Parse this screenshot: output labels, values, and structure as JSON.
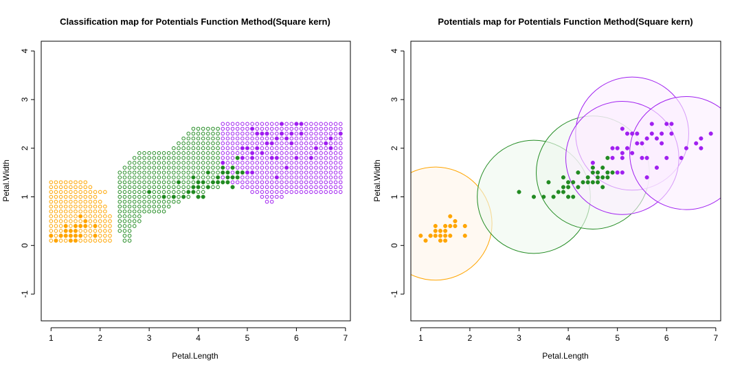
{
  "colors": {
    "setosa": "#ffa500",
    "versicolor": "#228b22",
    "virginica": "#a020f0",
    "frame": "#000000"
  },
  "chart_data": [
    {
      "type": "scatter",
      "title": "Classification map for Potentials Function Method(Square kern)",
      "xlabel": "Petal.Length",
      "ylabel": "Petal.Width",
      "xlim": [
        0.8,
        7.1
      ],
      "ylim": [
        -1.55,
        4.2
      ],
      "xticks": [
        1,
        2,
        3,
        4,
        5,
        6,
        7
      ],
      "yticks": [
        -1,
        0,
        1,
        2,
        3,
        4
      ],
      "grid": false,
      "grid_step": 0.1,
      "class_regions": [
        {
          "class": "setosa",
          "color": "#ffa500",
          "rows": [
            {
              "y": 0.1,
              "x_from": 1.0,
              "x_to": 2.2
            },
            {
              "y": 0.2,
              "x_from": 1.0,
              "x_to": 2.2
            },
            {
              "y": 0.3,
              "x_from": 1.0,
              "x_to": 2.2
            },
            {
              "y": 0.4,
              "x_from": 1.0,
              "x_to": 2.2
            },
            {
              "y": 0.5,
              "x_from": 1.0,
              "x_to": 2.2
            },
            {
              "y": 0.6,
              "x_from": 1.0,
              "x_to": 2.2
            },
            {
              "y": 0.7,
              "x_from": 1.0,
              "x_to": 2.1
            },
            {
              "y": 0.8,
              "x_from": 1.0,
              "x_to": 2.1
            },
            {
              "y": 0.9,
              "x_from": 1.0,
              "x_to": 2.0
            },
            {
              "y": 1.0,
              "x_from": 1.0,
              "x_to": 1.9
            },
            {
              "y": 1.1,
              "x_from": 1.0,
              "x_to": 2.1
            },
            {
              "y": 1.2,
              "x_from": 1.0,
              "x_to": 1.8
            },
            {
              "y": 1.3,
              "x_from": 1.0,
              "x_to": 1.7
            }
          ]
        },
        {
          "class": "versicolor",
          "color": "#228b22",
          "rows": [
            {
              "y": 0.1,
              "x_from": 2.5,
              "x_to": 2.6
            },
            {
              "y": 0.2,
              "x_from": 2.5,
              "x_to": 2.6
            },
            {
              "y": 0.3,
              "x_from": 2.4,
              "x_to": 2.6
            },
            {
              "y": 0.4,
              "x_from": 2.4,
              "x_to": 2.7
            },
            {
              "y": 0.5,
              "x_from": 2.4,
              "x_to": 2.8
            },
            {
              "y": 0.6,
              "x_from": 2.4,
              "x_to": 2.8
            },
            {
              "y": 0.7,
              "x_from": 2.4,
              "x_to": 3.3
            },
            {
              "y": 0.8,
              "x_from": 2.4,
              "x_to": 3.4
            },
            {
              "y": 0.9,
              "x_from": 2.4,
              "x_to": 3.6
            },
            {
              "y": 1.0,
              "x_from": 2.4,
              "x_to": 3.8
            },
            {
              "y": 1.1,
              "x_from": 2.4,
              "x_to": 4.1
            },
            {
              "y": 1.2,
              "x_from": 2.4,
              "x_to": 4.4
            },
            {
              "y": 1.3,
              "x_from": 2.4,
              "x_to": 4.4
            },
            {
              "y": 1.4,
              "x_from": 2.4,
              "x_to": 4.5
            },
            {
              "y": 1.5,
              "x_from": 2.4,
              "x_to": 4.4
            },
            {
              "y": 1.6,
              "x_from": 2.5,
              "x_to": 4.4
            },
            {
              "y": 1.7,
              "x_from": 2.6,
              "x_to": 4.4
            },
            {
              "y": 1.8,
              "x_from": 2.7,
              "x_to": 4.4
            },
            {
              "y": 1.9,
              "x_from": 2.8,
              "x_to": 4.4
            },
            {
              "y": 2.0,
              "x_from": 3.5,
              "x_to": 4.4
            },
            {
              "y": 2.1,
              "x_from": 3.6,
              "x_to": 4.4
            },
            {
              "y": 2.2,
              "x_from": 3.7,
              "x_to": 4.4
            },
            {
              "y": 2.3,
              "x_from": 3.8,
              "x_to": 4.4
            },
            {
              "y": 2.4,
              "x_from": 3.9,
              "x_to": 4.4
            }
          ]
        },
        {
          "class": "virginica",
          "color": "#a020f0",
          "rows": [
            {
              "y": 0.9,
              "x_from": 5.4,
              "x_to": 5.5
            },
            {
              "y": 1.0,
              "x_from": 5.3,
              "x_to": 5.7
            },
            {
              "y": 1.1,
              "x_from": 5.1,
              "x_to": 6.9
            },
            {
              "y": 1.2,
              "x_from": 4.9,
              "x_to": 6.9
            },
            {
              "y": 1.3,
              "x_from": 4.7,
              "x_to": 6.9
            },
            {
              "y": 1.4,
              "x_from": 4.5,
              "x_to": 6.9
            },
            {
              "y": 1.5,
              "x_from": 4.5,
              "x_to": 6.9
            },
            {
              "y": 1.6,
              "x_from": 4.5,
              "x_to": 6.9
            },
            {
              "y": 1.7,
              "x_from": 4.5,
              "x_to": 6.9
            },
            {
              "y": 1.8,
              "x_from": 4.5,
              "x_to": 6.9
            },
            {
              "y": 1.9,
              "x_from": 4.5,
              "x_to": 6.9
            },
            {
              "y": 2.0,
              "x_from": 4.5,
              "x_to": 6.9
            },
            {
              "y": 2.1,
              "x_from": 4.5,
              "x_to": 6.9
            },
            {
              "y": 2.2,
              "x_from": 4.5,
              "x_to": 6.9
            },
            {
              "y": 2.3,
              "x_from": 4.5,
              "x_to": 6.9
            },
            {
              "y": 2.4,
              "x_from": 4.5,
              "x_to": 6.9
            },
            {
              "y": 2.5,
              "x_from": 4.5,
              "x_to": 6.9
            }
          ]
        }
      ],
      "points": [
        {
          "class": "setosa",
          "x": 1.4,
          "y": 0.2
        },
        {
          "class": "setosa",
          "x": 1.3,
          "y": 0.2
        },
        {
          "class": "setosa",
          "x": 1.5,
          "y": 0.2
        },
        {
          "class": "setosa",
          "x": 1.7,
          "y": 0.4
        },
        {
          "class": "setosa",
          "x": 1.4,
          "y": 0.3
        },
        {
          "class": "setosa",
          "x": 1.5,
          "y": 0.1
        },
        {
          "class": "setosa",
          "x": 1.6,
          "y": 0.2
        },
        {
          "class": "setosa",
          "x": 1.1,
          "y": 0.1
        },
        {
          "class": "setosa",
          "x": 1.2,
          "y": 0.2
        },
        {
          "class": "setosa",
          "x": 1.5,
          "y": 0.4
        },
        {
          "class": "setosa",
          "x": 1.0,
          "y": 0.2
        },
        {
          "class": "setosa",
          "x": 1.7,
          "y": 0.5
        },
        {
          "class": "setosa",
          "x": 1.9,
          "y": 0.2
        },
        {
          "class": "setosa",
          "x": 1.6,
          "y": 0.4
        },
        {
          "class": "setosa",
          "x": 1.4,
          "y": 0.1
        },
        {
          "class": "setosa",
          "x": 1.6,
          "y": 0.6
        },
        {
          "class": "setosa",
          "x": 1.9,
          "y": 0.4
        },
        {
          "class": "setosa",
          "x": 1.3,
          "y": 0.3
        },
        {
          "class": "setosa",
          "x": 1.3,
          "y": 0.4
        },
        {
          "class": "setosa",
          "x": 1.2,
          "y": 0.2
        },
        {
          "class": "setosa",
          "x": 1.5,
          "y": 0.3
        },
        {
          "class": "versicolor",
          "x": 4.7,
          "y": 1.4
        },
        {
          "class": "versicolor",
          "x": 4.5,
          "y": 1.5
        },
        {
          "class": "versicolor",
          "x": 4.0,
          "y": 1.3
        },
        {
          "class": "versicolor",
          "x": 4.6,
          "y": 1.5
        },
        {
          "class": "versicolor",
          "x": 3.3,
          "y": 1.0
        },
        {
          "class": "versicolor",
          "x": 3.9,
          "y": 1.4
        },
        {
          "class": "versicolor",
          "x": 3.5,
          "y": 1.0
        },
        {
          "class": "versicolor",
          "x": 4.2,
          "y": 1.5
        },
        {
          "class": "versicolor",
          "x": 3.6,
          "y": 1.3
        },
        {
          "class": "versicolor",
          "x": 4.4,
          "y": 1.4
        },
        {
          "class": "versicolor",
          "x": 4.1,
          "y": 1.0
        },
        {
          "class": "versicolor",
          "x": 3.9,
          "y": 1.1
        },
        {
          "class": "versicolor",
          "x": 4.8,
          "y": 1.8
        },
        {
          "class": "versicolor",
          "x": 4.3,
          "y": 1.3
        },
        {
          "class": "versicolor",
          "x": 4.8,
          "y": 1.4
        },
        {
          "class": "versicolor",
          "x": 3.0,
          "y": 1.1
        },
        {
          "class": "versicolor",
          "x": 3.7,
          "y": 1.0
        },
        {
          "class": "versicolor",
          "x": 3.8,
          "y": 1.1
        },
        {
          "class": "versicolor",
          "x": 4.5,
          "y": 1.6
        },
        {
          "class": "versicolor",
          "x": 4.7,
          "y": 1.6
        },
        {
          "class": "versicolor",
          "x": 4.4,
          "y": 1.3
        },
        {
          "class": "versicolor",
          "x": 4.2,
          "y": 1.2
        },
        {
          "class": "versicolor",
          "x": 4.0,
          "y": 1.2
        },
        {
          "class": "versicolor",
          "x": 3.9,
          "y": 1.2
        },
        {
          "class": "versicolor",
          "x": 4.6,
          "y": 1.4
        },
        {
          "class": "versicolor",
          "x": 4.1,
          "y": 1.3
        },
        {
          "class": "versicolor",
          "x": 4.9,
          "y": 1.5
        },
        {
          "class": "versicolor",
          "x": 4.5,
          "y": 1.3
        },
        {
          "class": "versicolor",
          "x": 4.0,
          "y": 1.0
        },
        {
          "class": "versicolor",
          "x": 4.7,
          "y": 1.2
        },
        {
          "class": "versicolor",
          "x": 4.8,
          "y": 1.5
        },
        {
          "class": "versicolor",
          "x": 4.6,
          "y": 1.3
        },
        {
          "class": "virginica",
          "x": 6.0,
          "y": 2.5
        },
        {
          "class": "virginica",
          "x": 5.1,
          "y": 1.9
        },
        {
          "class": "virginica",
          "x": 5.9,
          "y": 2.1
        },
        {
          "class": "virginica",
          "x": 5.6,
          "y": 1.8
        },
        {
          "class": "virginica",
          "x": 5.8,
          "y": 2.2
        },
        {
          "class": "virginica",
          "x": 6.6,
          "y": 2.1
        },
        {
          "class": "virginica",
          "x": 4.5,
          "y": 1.7
        },
        {
          "class": "virginica",
          "x": 6.3,
          "y": 1.8
        },
        {
          "class": "virginica",
          "x": 6.1,
          "y": 2.5
        },
        {
          "class": "virginica",
          "x": 5.3,
          "y": 1.9
        },
        {
          "class": "virginica",
          "x": 5.5,
          "y": 2.1
        },
        {
          "class": "virginica",
          "x": 5.0,
          "y": 2.0
        },
        {
          "class": "virginica",
          "x": 5.1,
          "y": 2.4
        },
        {
          "class": "virginica",
          "x": 5.3,
          "y": 2.3
        },
        {
          "class": "virginica",
          "x": 6.7,
          "y": 2.2
        },
        {
          "class": "virginica",
          "x": 6.9,
          "y": 2.3
        },
        {
          "class": "virginica",
          "x": 5.0,
          "y": 1.5
        },
        {
          "class": "virginica",
          "x": 5.7,
          "y": 2.3
        },
        {
          "class": "virginica",
          "x": 4.9,
          "y": 2.0
        },
        {
          "class": "virginica",
          "x": 6.7,
          "y": 2.0
        },
        {
          "class": "virginica",
          "x": 4.9,
          "y": 1.8
        },
        {
          "class": "virginica",
          "x": 6.0,
          "y": 1.8
        },
        {
          "class": "virginica",
          "x": 5.8,
          "y": 1.6
        },
        {
          "class": "virginica",
          "x": 6.4,
          "y": 2.0
        },
        {
          "class": "virginica",
          "x": 5.6,
          "y": 2.2
        },
        {
          "class": "virginica",
          "x": 5.1,
          "y": 1.5
        },
        {
          "class": "virginica",
          "x": 5.6,
          "y": 1.4
        },
        {
          "class": "virginica",
          "x": 6.1,
          "y": 2.3
        },
        {
          "class": "virginica",
          "x": 5.5,
          "y": 1.8
        },
        {
          "class": "virginica",
          "x": 5.4,
          "y": 2.1
        },
        {
          "class": "virginica",
          "x": 5.2,
          "y": 2.3
        },
        {
          "class": "virginica",
          "x": 5.2,
          "y": 2.0
        },
        {
          "class": "virginica",
          "x": 5.7,
          "y": 2.5
        },
        {
          "class": "virginica",
          "x": 5.1,
          "y": 1.8
        },
        {
          "class": "virginica",
          "x": 5.9,
          "y": 2.3
        },
        {
          "class": "virginica",
          "x": 5.4,
          "y": 2.3
        }
      ]
    },
    {
      "type": "scatter",
      "title": "Potentials map for Potentials Function Method(Square kern)",
      "xlabel": "Petal.Length",
      "ylabel": "Petal.Width",
      "xlim": [
        0.8,
        7.1
      ],
      "ylim": [
        -1.55,
        4.2
      ],
      "xticks": [
        1,
        2,
        3,
        4,
        5,
        6,
        7
      ],
      "yticks": [
        -1,
        0,
        1,
        2,
        3,
        4
      ],
      "grid": false,
      "potential_circles": [
        {
          "class": "setosa",
          "color": "#ffa500",
          "fill": "#fff5ea",
          "x": 1.3,
          "y": 0.45,
          "r": 1.15
        },
        {
          "class": "versicolor",
          "color": "#228b22",
          "fill": "#eef9ee",
          "x": 3.3,
          "y": 1.0,
          "r": 1.15
        },
        {
          "class": "versicolor",
          "color": "#228b22",
          "fill": "#eef9ee",
          "x": 4.5,
          "y": 1.5,
          "r": 1.15
        },
        {
          "class": "virginica",
          "color": "#a020f0",
          "fill": "#fbeeff",
          "x": 5.3,
          "y": 2.3,
          "r": 1.15
        },
        {
          "class": "virginica",
          "color": "#a020f0",
          "fill": "#fbeeff",
          "x": 5.1,
          "y": 1.8,
          "r": 1.15
        },
        {
          "class": "virginica",
          "color": "#a020f0",
          "fill": "#fbeeff",
          "x": 6.4,
          "y": 1.9,
          "r": 1.15
        }
      ],
      "points_ref": "same as chart 1"
    }
  ]
}
